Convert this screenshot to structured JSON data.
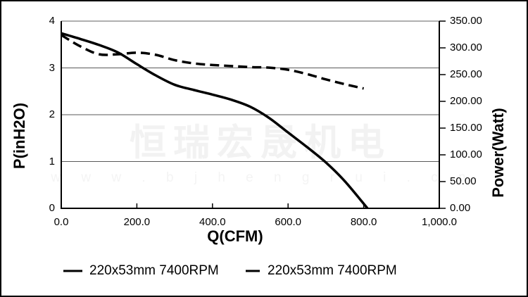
{
  "watermark": {
    "line1": "恒瑞宏晟机电",
    "line2": "w w w . b j h e n g r u i . c n"
  },
  "axes": {
    "x_title": "Q(CFM)",
    "y_left_title": "P(inH2O)",
    "y_right_title": "Power(Watt)"
  },
  "legend": {
    "items": [
      {
        "label": "220x53mm 7400RPM",
        "style": "solid"
      },
      {
        "label": "220x53mm 7400RPM",
        "style": "dashed"
      }
    ]
  },
  "chart_data": {
    "type": "line",
    "title": "",
    "xlabel": "Q(CFM)",
    "ylabel_left": "P(inH2O)",
    "ylabel_right": "Power(Watt)",
    "x_range": [
      0,
      1000
    ],
    "y_left_range": [
      0,
      4
    ],
    "y_right_range": [
      0,
      350
    ],
    "grid": "horizontal",
    "gridlines_left_values": [
      1,
      2,
      3
    ],
    "x_ticks": [
      {
        "v": 0,
        "label": "0.0"
      },
      {
        "v": 200,
        "label": "200.0"
      },
      {
        "v": 400,
        "label": "400.0"
      },
      {
        "v": 600,
        "label": "600.0"
      },
      {
        "v": 800,
        "label": "800.0"
      },
      {
        "v": 1000,
        "label": "1,000.0"
      }
    ],
    "y_left_ticks": [
      {
        "v": 4,
        "label": "4"
      },
      {
        "v": 3,
        "label": "3"
      },
      {
        "v": 2,
        "label": "2"
      },
      {
        "v": 1,
        "label": "1"
      },
      {
        "v": 0,
        "label": "0"
      }
    ],
    "y_right_ticks": [
      {
        "v": 350,
        "label": "350.00"
      },
      {
        "v": 300,
        "label": "300.00"
      },
      {
        "v": 250,
        "label": "250.00"
      },
      {
        "v": 200,
        "label": "200.00"
      },
      {
        "v": 150,
        "label": "150.00"
      },
      {
        "v": 100,
        "label": "100.00"
      },
      {
        "v": 50,
        "label": "50.00"
      },
      {
        "v": 0,
        "label": "0.00"
      }
    ],
    "series": [
      {
        "name": "220x53mm 7400RPM",
        "style": "solid",
        "axis": "left",
        "unit": "inH2O",
        "points": [
          [
            0,
            3.74
          ],
          [
            50,
            3.62
          ],
          [
            100,
            3.49
          ],
          [
            150,
            3.33
          ],
          [
            200,
            3.08
          ],
          [
            250,
            2.84
          ],
          [
            300,
            2.64
          ],
          [
            350,
            2.53
          ],
          [
            400,
            2.43
          ],
          [
            450,
            2.32
          ],
          [
            500,
            2.17
          ],
          [
            550,
            1.93
          ],
          [
            600,
            1.62
          ],
          [
            650,
            1.31
          ],
          [
            700,
            0.98
          ],
          [
            750,
            0.58
          ],
          [
            810,
            0.0
          ]
        ]
      },
      {
        "name": "220x53mm 7400RPM",
        "style": "dashed",
        "axis": "right",
        "unit": "Watt",
        "points": [
          [
            0,
            324
          ],
          [
            50,
            303
          ],
          [
            100,
            288
          ],
          [
            150,
            288
          ],
          [
            200,
            291
          ],
          [
            250,
            287
          ],
          [
            300,
            277
          ],
          [
            350,
            271
          ],
          [
            400,
            268
          ],
          [
            450,
            266
          ],
          [
            500,
            264
          ],
          [
            550,
            263
          ],
          [
            600,
            259
          ],
          [
            650,
            251
          ],
          [
            700,
            241
          ],
          [
            750,
            232
          ],
          [
            800,
            224
          ]
        ]
      }
    ]
  },
  "colors": {
    "line": "#000000",
    "gridline": "#595959",
    "frame_top": "#808080",
    "watermark": "#f2f2f2"
  }
}
